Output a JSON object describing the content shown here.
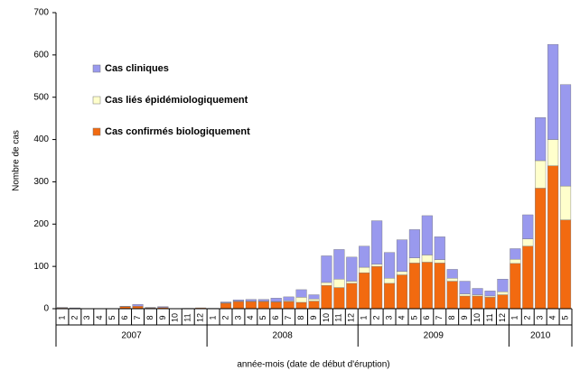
{
  "chart_data": {
    "type": "stacked_bar",
    "y_label": "Nombre de cas",
    "x_label": "année-mois (date de début d'éruption)",
    "categories": [
      "1",
      "2",
      "3",
      "4",
      "5",
      "6",
      "7",
      "8",
      "9",
      "10",
      "11",
      "12",
      "1",
      "2",
      "3",
      "4",
      "5",
      "6",
      "7",
      "8",
      "9",
      "10",
      "11",
      "12",
      "1",
      "2",
      "3",
      "4",
      "5",
      "6",
      "7",
      "8",
      "9",
      "10",
      "11",
      "12",
      "1",
      "2",
      "3",
      "4",
      "5"
    ],
    "years": [
      "2007",
      "2008",
      "2009",
      "2010"
    ],
    "ylim": [
      0,
      700
    ],
    "yticks": [
      0,
      100,
      200,
      300,
      400,
      500,
      600,
      700
    ],
    "grid": false,
    "legend": "upper left",
    "series": [
      {
        "name": "Cas confirmés biologiquement",
        "color": "#f26a10",
        "values": [
          2,
          1,
          0,
          0,
          0,
          5,
          6,
          2,
          3,
          0,
          1,
          2,
          1,
          13,
          17,
          17,
          17,
          16,
          17,
          15,
          18,
          55,
          50,
          60,
          85,
          100,
          60,
          80,
          108,
          110,
          108,
          65,
          30,
          30,
          27,
          33,
          107,
          148,
          285,
          338,
          210
        ]
      },
      {
        "name": "Cas liés épidémiologiquement",
        "color": "#ffffcc",
        "values": [
          0,
          0,
          0,
          0,
          0,
          0,
          0,
          0,
          0,
          0,
          0,
          0,
          0,
          1,
          1,
          1,
          1,
          1,
          2,
          12,
          5,
          7,
          20,
          5,
          13,
          5,
          12,
          8,
          12,
          17,
          8,
          7,
          5,
          3,
          3,
          7,
          10,
          17,
          65,
          62,
          80
        ]
      },
      {
        "name": "Cas cliniques",
        "color": "#9999ee",
        "values": [
          1,
          1,
          0,
          0,
          0,
          1,
          4,
          1,
          2,
          0,
          0,
          0,
          0,
          2,
          3,
          4,
          4,
          8,
          9,
          18,
          10,
          63,
          70,
          57,
          50,
          103,
          61,
          75,
          67,
          93,
          54,
          21,
          30,
          15,
          12,
          30,
          25,
          57,
          102,
          225,
          240
        ]
      }
    ]
  }
}
